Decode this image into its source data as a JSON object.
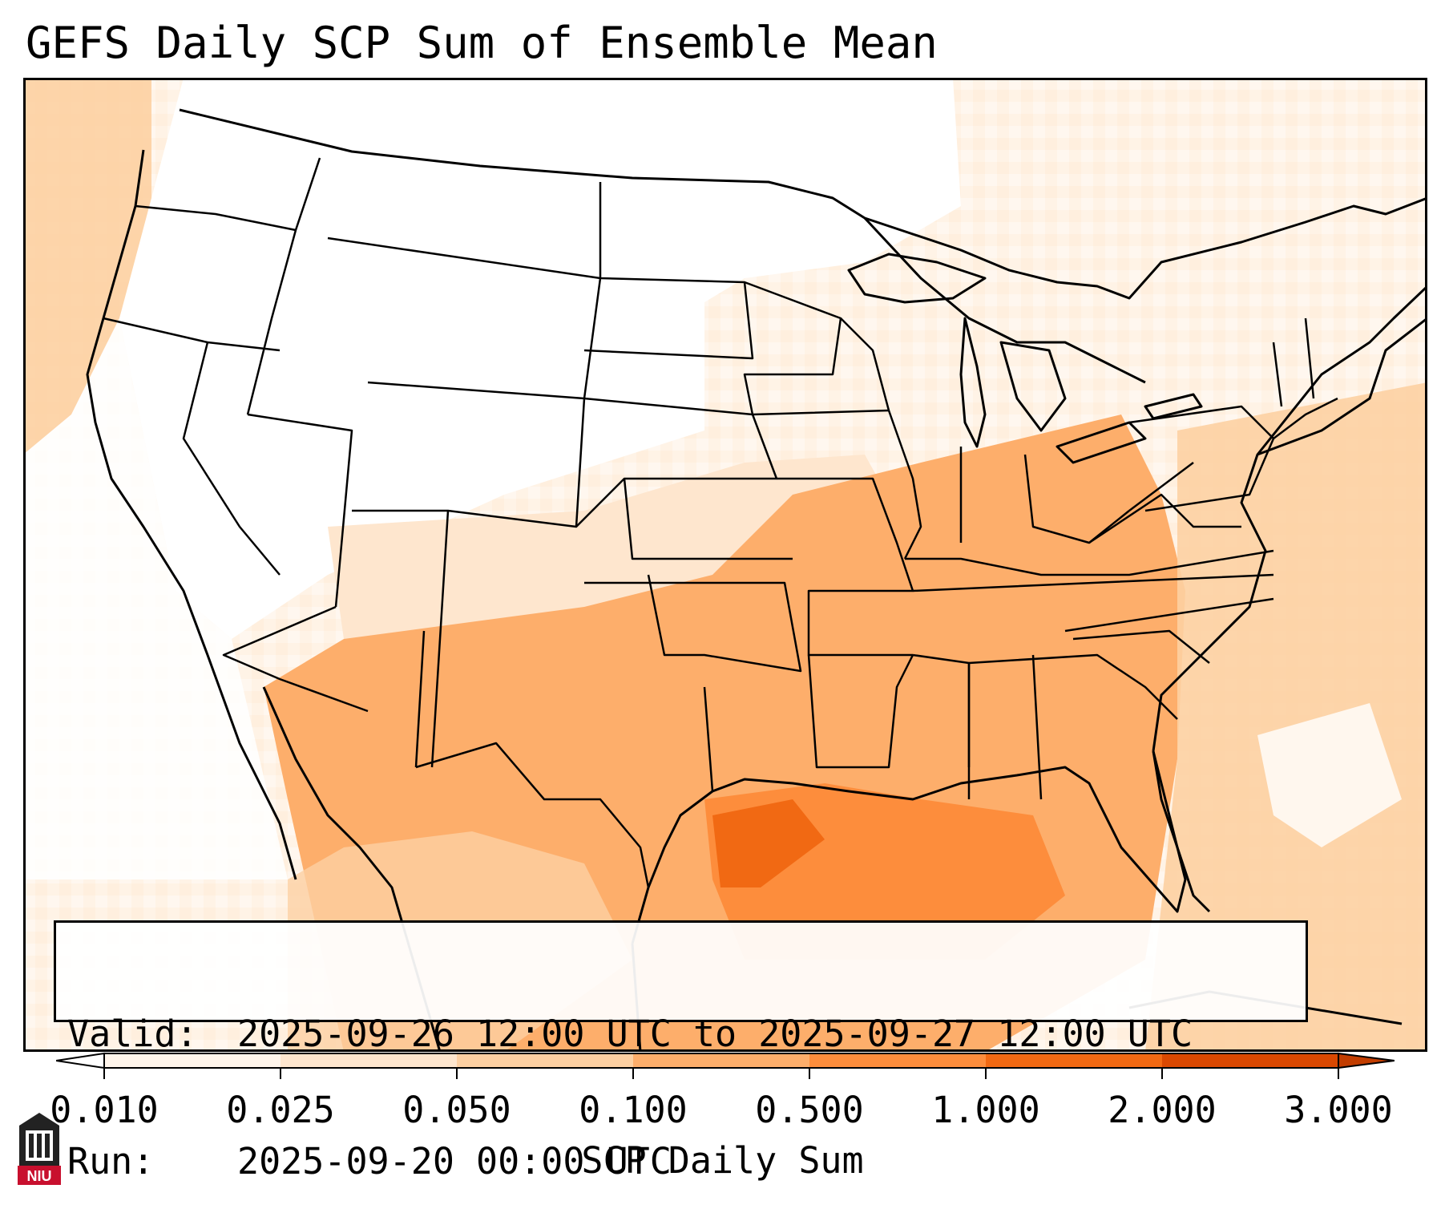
{
  "title": "GEFS Daily SCP Sum of Ensemble Mean",
  "info": {
    "valid_label": "Valid:",
    "valid_value": "2025-09-26 12:00 UTC to 2025-09-27 12:00 UTC",
    "run_label": "Run:",
    "run_value": "2025-09-20 00:00 UTC"
  },
  "colorbar": {
    "label": "SCP Daily Sum",
    "ticks": [
      "0.010",
      "0.025",
      "0.050",
      "0.100",
      "0.500",
      "1.000",
      "2.000",
      "3.000"
    ],
    "colors": [
      "#fff5eb",
      "#fee6ce",
      "#fdd0a2",
      "#fdae6b",
      "#fd8d3c",
      "#f16913",
      "#d94801"
    ],
    "extend": "both"
  },
  "map": {
    "projection": "lambert-conformal",
    "region": "CONUS",
    "outline_color": "#000000"
  },
  "logo": {
    "name": "niu-logo",
    "text": "NIU",
    "color": "#c8102e"
  }
}
